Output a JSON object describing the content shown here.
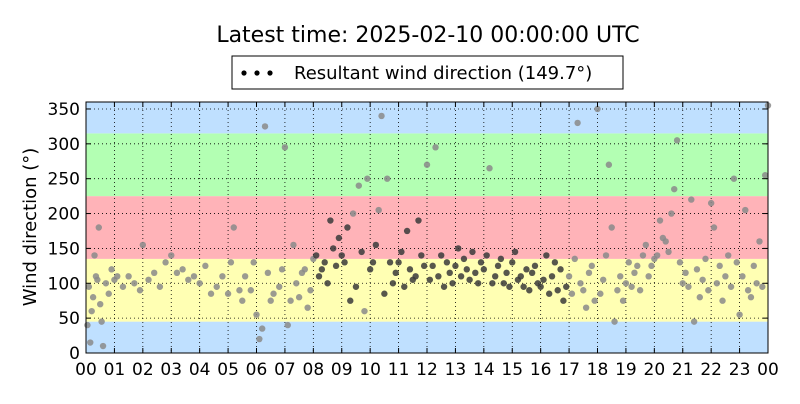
{
  "chart_data": {
    "type": "scatter",
    "title": "Latest time: 2025-02-10 00:00:00 UTC",
    "xlabel": "",
    "ylabel": "Wind direction (°)",
    "xlim": [
      0,
      24
    ],
    "ylim": [
      0,
      360
    ],
    "x_tick_labels": [
      "00",
      "01",
      "02",
      "03",
      "04",
      "05",
      "06",
      "07",
      "08",
      "09",
      "10",
      "11",
      "12",
      "13",
      "14",
      "15",
      "16",
      "17",
      "18",
      "19",
      "20",
      "21",
      "22",
      "23",
      "00"
    ],
    "y_ticks": [
      0,
      50,
      100,
      150,
      200,
      250,
      300,
      350
    ],
    "grid": true,
    "legend": {
      "placement": "top-center",
      "entries": [
        {
          "label": "Resultant wind direction (149.7°)",
          "color": "#000000"
        }
      ]
    },
    "bands": [
      {
        "from": 0,
        "to": 45,
        "color": "#bfe0ff"
      },
      {
        "from": 45,
        "to": 135,
        "color": "#ffffb3"
      },
      {
        "from": 135,
        "to": 225,
        "color": "#ffb3b8"
      },
      {
        "from": 225,
        "to": 315,
        "color": "#b3ffb3"
      },
      {
        "from": 315,
        "to": 360,
        "color": "#bfe0ff"
      }
    ],
    "series": [
      {
        "name": "Resultant wind direction (149.7°)",
        "points": [
          [
            0.05,
            40
          ],
          [
            0.1,
            95
          ],
          [
            0.15,
            15
          ],
          [
            0.2,
            60
          ],
          [
            0.25,
            80
          ],
          [
            0.3,
            140
          ],
          [
            0.35,
            110
          ],
          [
            0.4,
            105
          ],
          [
            0.45,
            180
          ],
          [
            0.5,
            70
          ],
          [
            0.55,
            45
          ],
          [
            0.6,
            10
          ],
          [
            0.7,
            100
          ],
          [
            0.8,
            85
          ],
          [
            0.9,
            120
          ],
          [
            1.0,
            105
          ],
          [
            1.1,
            110
          ],
          [
            1.3,
            95
          ],
          [
            1.5,
            110
          ],
          [
            1.7,
            100
          ],
          [
            1.9,
            90
          ],
          [
            2.0,
            155
          ],
          [
            2.2,
            105
          ],
          [
            2.4,
            115
          ],
          [
            2.6,
            95
          ],
          [
            2.8,
            130
          ],
          [
            3.0,
            140
          ],
          [
            3.2,
            115
          ],
          [
            3.4,
            120
          ],
          [
            3.6,
            105
          ],
          [
            3.8,
            110
          ],
          [
            4.0,
            100
          ],
          [
            4.2,
            125
          ],
          [
            4.4,
            85
          ],
          [
            4.6,
            95
          ],
          [
            4.8,
            110
          ],
          [
            5.0,
            85
          ],
          [
            5.1,
            130
          ],
          [
            5.2,
            180
          ],
          [
            5.4,
            90
          ],
          [
            5.5,
            75
          ],
          [
            5.6,
            110
          ],
          [
            5.8,
            90
          ],
          [
            5.9,
            130
          ],
          [
            6.0,
            55
          ],
          [
            6.1,
            20
          ],
          [
            6.2,
            35
          ],
          [
            6.3,
            325
          ],
          [
            6.4,
            115
          ],
          [
            6.5,
            75
          ],
          [
            6.6,
            85
          ],
          [
            6.8,
            95
          ],
          [
            6.9,
            120
          ],
          [
            7.0,
            295
          ],
          [
            7.1,
            40
          ],
          [
            7.2,
            75
          ],
          [
            7.3,
            155
          ],
          [
            7.4,
            100
          ],
          [
            7.5,
            80
          ],
          [
            7.6,
            115
          ],
          [
            7.7,
            120
          ],
          [
            7.8,
            65
          ],
          [
            7.9,
            90
          ],
          [
            8.0,
            135
          ],
          [
            8.1,
            140
          ],
          [
            8.2,
            110
          ],
          [
            8.3,
            120
          ],
          [
            8.4,
            130
          ],
          [
            8.5,
            100
          ],
          [
            8.6,
            190
          ],
          [
            8.7,
            150
          ],
          [
            8.8,
            125
          ],
          [
            8.9,
            165
          ],
          [
            9.0,
            140
          ],
          [
            9.1,
            130
          ],
          [
            9.2,
            180
          ],
          [
            9.3,
            75
          ],
          [
            9.4,
            200
          ],
          [
            9.5,
            95
          ],
          [
            9.6,
            240
          ],
          [
            9.7,
            145
          ],
          [
            9.8,
            60
          ],
          [
            9.9,
            250
          ],
          [
            10.0,
            120
          ],
          [
            10.1,
            130
          ],
          [
            10.2,
            155
          ],
          [
            10.3,
            205
          ],
          [
            10.4,
            340
          ],
          [
            10.5,
            85
          ],
          [
            10.6,
            250
          ],
          [
            10.7,
            130
          ],
          [
            10.8,
            100
          ],
          [
            10.9,
            115
          ],
          [
            11.0,
            130
          ],
          [
            11.1,
            145
          ],
          [
            11.2,
            95
          ],
          [
            11.3,
            175
          ],
          [
            11.4,
            120
          ],
          [
            11.5,
            105
          ],
          [
            11.6,
            110
          ],
          [
            11.7,
            190
          ],
          [
            11.8,
            140
          ],
          [
            11.9,
            125
          ],
          [
            12.0,
            270
          ],
          [
            12.1,
            105
          ],
          [
            12.2,
            125
          ],
          [
            12.3,
            295
          ],
          [
            12.4,
            110
          ],
          [
            12.5,
            140
          ],
          [
            12.6,
            95
          ],
          [
            12.7,
            130
          ],
          [
            12.8,
            115
          ],
          [
            12.9,
            100
          ],
          [
            13.0,
            125
          ],
          [
            13.1,
            150
          ],
          [
            13.2,
            110
          ],
          [
            13.3,
            135
          ],
          [
            13.4,
            120
          ],
          [
            13.5,
            105
          ],
          [
            13.6,
            145
          ],
          [
            13.7,
            115
          ],
          [
            13.8,
            100
          ],
          [
            13.9,
            130
          ],
          [
            14.0,
            120
          ],
          [
            14.1,
            140
          ],
          [
            14.2,
            265
          ],
          [
            14.3,
            100
          ],
          [
            14.4,
            110
          ],
          [
            14.5,
            125
          ],
          [
            14.6,
            135
          ],
          [
            14.7,
            100
          ],
          [
            14.8,
            115
          ],
          [
            14.9,
            95
          ],
          [
            15.0,
            130
          ],
          [
            15.1,
            145
          ],
          [
            15.2,
            105
          ],
          [
            15.3,
            110
          ],
          [
            15.4,
            95
          ],
          [
            15.5,
            120
          ],
          [
            15.6,
            90
          ],
          [
            15.7,
            115
          ],
          [
            15.8,
            125
          ],
          [
            15.9,
            100
          ],
          [
            16.0,
            95
          ],
          [
            16.1,
            105
          ],
          [
            16.2,
            140
          ],
          [
            16.3,
            85
          ],
          [
            16.4,
            110
          ],
          [
            16.5,
            130
          ],
          [
            16.6,
            90
          ],
          [
            16.7,
            120
          ],
          [
            16.8,
            75
          ],
          [
            16.9,
            95
          ],
          [
            17.0,
            110
          ],
          [
            17.1,
            85
          ],
          [
            17.2,
            135
          ],
          [
            17.3,
            330
          ],
          [
            17.4,
            100
          ],
          [
            17.5,
            90
          ],
          [
            17.6,
            65
          ],
          [
            17.7,
            115
          ],
          [
            17.8,
            125
          ],
          [
            17.9,
            75
          ],
          [
            18.0,
            350
          ],
          [
            18.1,
            85
          ],
          [
            18.2,
            105
          ],
          [
            18.3,
            140
          ],
          [
            18.4,
            270
          ],
          [
            18.5,
            180
          ],
          [
            18.6,
            45
          ],
          [
            18.7,
            90
          ],
          [
            18.8,
            110
          ],
          [
            18.9,
            75
          ],
          [
            19.0,
            100
          ],
          [
            19.1,
            130
          ],
          [
            19.2,
            95
          ],
          [
            19.3,
            115
          ],
          [
            19.4,
            125
          ],
          [
            19.5,
            90
          ],
          [
            19.6,
            140
          ],
          [
            19.7,
            155
          ],
          [
            19.8,
            110
          ],
          [
            19.9,
            125
          ],
          [
            20.0,
            135
          ],
          [
            20.1,
            140
          ],
          [
            20.2,
            190
          ],
          [
            20.3,
            165
          ],
          [
            20.4,
            160
          ],
          [
            20.5,
            145
          ],
          [
            20.6,
            200
          ],
          [
            20.7,
            235
          ],
          [
            20.8,
            305
          ],
          [
            20.9,
            130
          ],
          [
            21.0,
            100
          ],
          [
            21.1,
            115
          ],
          [
            21.2,
            95
          ],
          [
            21.3,
            220
          ],
          [
            21.4,
            45
          ],
          [
            21.5,
            120
          ],
          [
            21.6,
            80
          ],
          [
            21.7,
            105
          ],
          [
            21.8,
            135
          ],
          [
            21.9,
            90
          ],
          [
            22.0,
            215
          ],
          [
            22.1,
            180
          ],
          [
            22.2,
            100
          ],
          [
            22.3,
            125
          ],
          [
            22.4,
            75
          ],
          [
            22.5,
            110
          ],
          [
            22.6,
            140
          ],
          [
            22.7,
            95
          ],
          [
            22.8,
            250
          ],
          [
            22.9,
            130
          ],
          [
            23.0,
            55
          ],
          [
            23.1,
            110
          ],
          [
            23.2,
            205
          ],
          [
            23.3,
            90
          ],
          [
            23.4,
            80
          ],
          [
            23.5,
            125
          ],
          [
            23.6,
            100
          ],
          [
            23.7,
            160
          ],
          [
            23.8,
            95
          ],
          [
            23.9,
            255
          ],
          [
            24.0,
            355
          ]
        ]
      }
    ]
  }
}
